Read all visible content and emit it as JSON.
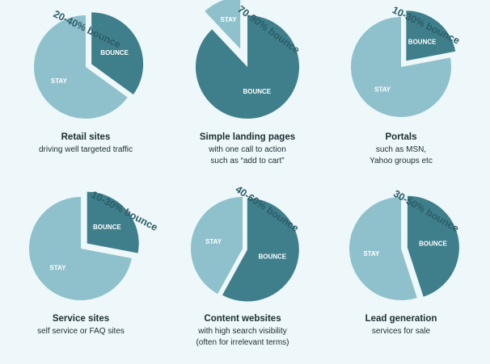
{
  "colors": {
    "background": "#eef7f9",
    "stay": "#8fc1cc",
    "bounce": "#3f7f8b",
    "annotation": "#2b5d68",
    "caption": "#1c2e33"
  },
  "labels": {
    "bounce": "BOUNCE",
    "stay": "STAY"
  },
  "chart_data": [
    {
      "type": "pie",
      "title": "Retail sites",
      "subtitle": [
        "driving well targeted traffic"
      ],
      "bounce_label": "20-40% bounce",
      "slices": [
        {
          "label": "BOUNCE",
          "value": 35
        },
        {
          "label": "STAY",
          "value": 65
        }
      ]
    },
    {
      "type": "pie",
      "title": "Simple landing pages",
      "subtitle": [
        "with one call to action",
        "such as “add to cart”"
      ],
      "bounce_label": "70-90% bounce",
      "slices": [
        {
          "label": "BOUNCE",
          "value": 88
        },
        {
          "label": "STAY",
          "value": 12
        }
      ]
    },
    {
      "type": "pie",
      "title": "Portals",
      "subtitle": [
        "such as MSN,",
        "Yahoo groups etc"
      ],
      "bounce_label": "10-30% bounce",
      "slices": [
        {
          "label": "BOUNCE",
          "value": 22
        },
        {
          "label": "STAY",
          "value": 78
        }
      ]
    },
    {
      "type": "pie",
      "title": "Service sites",
      "subtitle": [
        "self service or FAQ sites"
      ],
      "bounce_label": "10-30% bounce",
      "slices": [
        {
          "label": "BOUNCE",
          "value": 28
        },
        {
          "label": "STAY",
          "value": 72
        }
      ]
    },
    {
      "type": "pie",
      "title": "Content websites",
      "subtitle": [
        "with high search visibility",
        "(often for irrelevant terms)"
      ],
      "bounce_label": "40-60% bounce",
      "slices": [
        {
          "label": "BOUNCE",
          "value": 58
        },
        {
          "label": "STAY",
          "value": 42
        }
      ]
    },
    {
      "type": "pie",
      "title": "Lead generation",
      "subtitle": [
        "services for sale"
      ],
      "bounce_label": "30-50% bounce",
      "slices": [
        {
          "label": "BOUNCE",
          "value": 45
        },
        {
          "label": "STAY",
          "value": 55
        }
      ]
    }
  ]
}
